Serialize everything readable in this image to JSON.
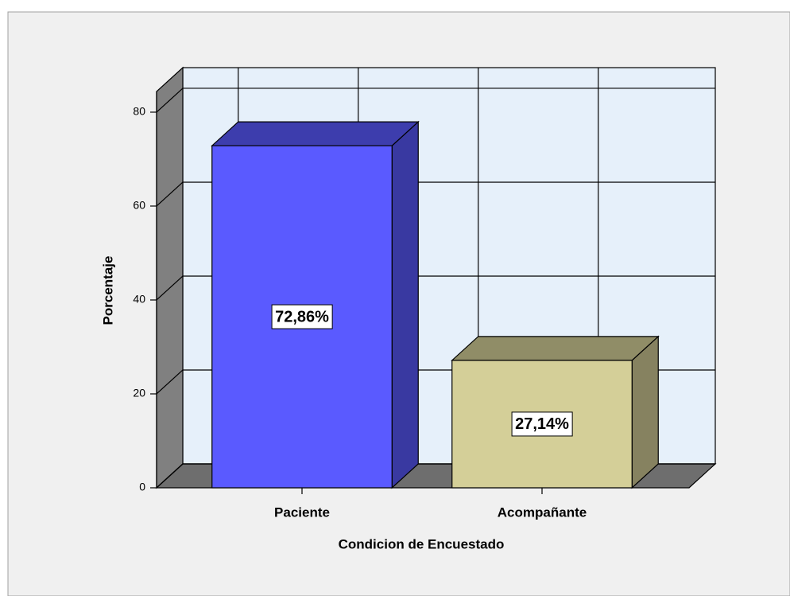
{
  "chart_data": {
    "type": "bar3d",
    "xlabel": "Condicion de Encuestado",
    "ylabel": "Porcentaje",
    "categories": [
      "Paciente",
      "Acompañante"
    ],
    "values": [
      72.86,
      27.14
    ],
    "value_labels": [
      "72,86%",
      "27,14%"
    ],
    "colors": [
      "#5a5aff",
      "#d4cf98"
    ],
    "ylim": [
      0,
      84.4
    ],
    "yticks": [
      0,
      20,
      40,
      60,
      80
    ],
    "grid": true
  }
}
